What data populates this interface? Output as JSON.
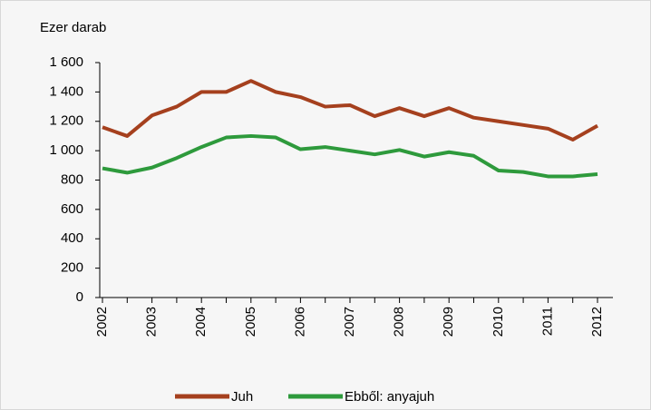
{
  "chart_data": {
    "type": "line",
    "y_axis_label": "Ezer darab",
    "categories": [
      "2002",
      null,
      "2003",
      null,
      "2004",
      null,
      "2005",
      null,
      "2006",
      null,
      "2007",
      null,
      "2008",
      null,
      "2009",
      null,
      "2010",
      null,
      "2011",
      null,
      "2012"
    ],
    "series": [
      {
        "name": "Juh",
        "color": "#a5401e",
        "values": [
          1160,
          1100,
          1240,
          1300,
          1400,
          1400,
          1475,
          1400,
          1365,
          1300,
          1310,
          1235,
          1290,
          1235,
          1290,
          1225,
          1200,
          1175,
          1150,
          1075,
          1170
        ]
      },
      {
        "name": "Ebből: anyajuh",
        "color": "#2e9a3c",
        "values": [
          880,
          850,
          885,
          950,
          1025,
          1090,
          1100,
          1090,
          1010,
          1025,
          1000,
          975,
          1005,
          960,
          990,
          965,
          865,
          855,
          825,
          825,
          840
        ]
      }
    ],
    "ylim": [
      0,
      1600
    ],
    "yticks": [
      0,
      200,
      400,
      600,
      800,
      {
        "value": 1000,
        "label": "1 000"
      },
      {
        "value": 1200,
        "label": "1 200"
      },
      {
        "value": 1400,
        "label": "1 400"
      },
      {
        "value": 1600,
        "label": "1 600"
      }
    ],
    "grid": false,
    "legend": "bottom"
  }
}
